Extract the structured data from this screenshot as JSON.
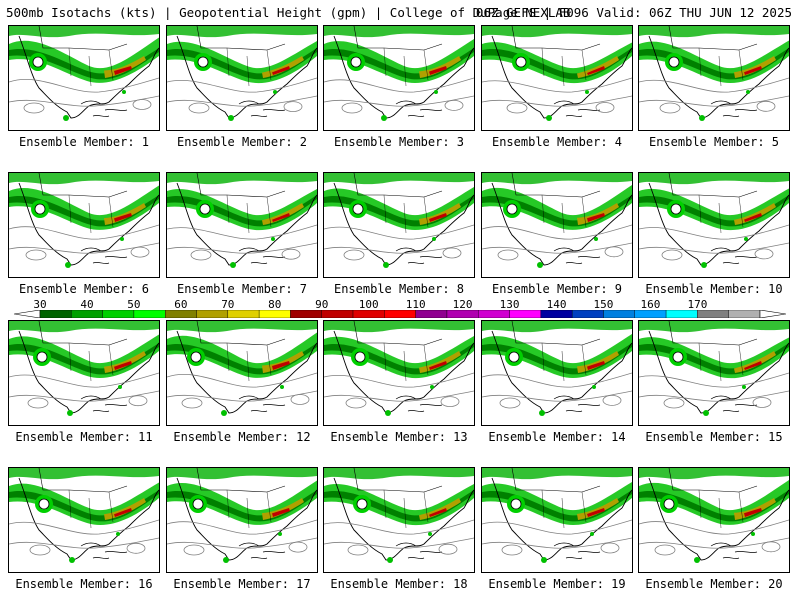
{
  "header": {
    "left": "500mb Isotachs (kts) | Geopotential Height (gpm) | College of DuPage NEXLAB",
    "right": "06Z GEFS | F096 Valid: 06Z THU JUN 12 2025"
  },
  "panels": [
    {
      "caption": "Ensemble Member: 1"
    },
    {
      "caption": "Ensemble Member: 2"
    },
    {
      "caption": "Ensemble Member: 3"
    },
    {
      "caption": "Ensemble Member: 4"
    },
    {
      "caption": "Ensemble Member: 5"
    },
    {
      "caption": "Ensemble Member: 6"
    },
    {
      "caption": "Ensemble Member: 7"
    },
    {
      "caption": "Ensemble Member: 8"
    },
    {
      "caption": "Ensemble Member: 9"
    },
    {
      "caption": "Ensemble Member: 10"
    },
    {
      "caption": "Ensemble Member: 11"
    },
    {
      "caption": "Ensemble Member: 12"
    },
    {
      "caption": "Ensemble Member: 13"
    },
    {
      "caption": "Ensemble Member: 14"
    },
    {
      "caption": "Ensemble Member: 15"
    },
    {
      "caption": "Ensemble Member: 16"
    },
    {
      "caption": "Ensemble Member: 17"
    },
    {
      "caption": "Ensemble Member: 18"
    },
    {
      "caption": "Ensemble Member: 19"
    },
    {
      "caption": "Ensemble Member: 20"
    }
  ],
  "colorbar": {
    "labels": [
      "30",
      "40",
      "50",
      "60",
      "70",
      "80",
      "90",
      "100",
      "110",
      "120",
      "130",
      "140",
      "150",
      "160",
      "170"
    ],
    "colors": [
      "#006400",
      "#00a000",
      "#00d000",
      "#00ff00",
      "#808000",
      "#b0a000",
      "#e0d000",
      "#ffff00",
      "#a00000",
      "#c00000",
      "#e00000",
      "#ff0000",
      "#900090",
      "#b000b0",
      "#d000d0",
      "#ff00ff",
      "#0000a0",
      "#0040c0",
      "#0080e0",
      "#00a0ff",
      "#00ffff",
      "#808080",
      "#b0b0b0"
    ]
  }
}
